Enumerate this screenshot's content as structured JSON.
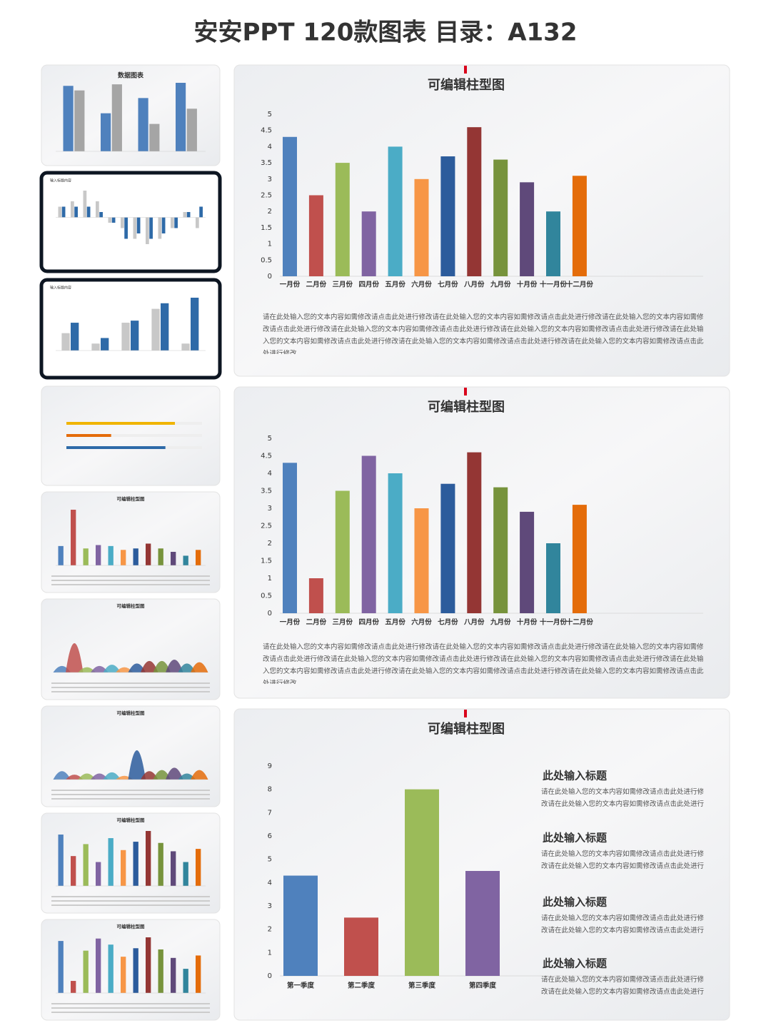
{
  "header": {
    "title": "安安PPT 120款图表 目录：A132"
  },
  "chart_data": [
    {
      "type": "bar",
      "title": "可编辑柱型图",
      "categories": [
        "一月份",
        "二月份",
        "三月份",
        "四月份",
        "五月份",
        "六月份",
        "七月份",
        "八月份",
        "九月份",
        "十月份",
        "十一月份",
        "十二月份"
      ],
      "values": [
        4.3,
        2.5,
        3.5,
        2.0,
        4.0,
        3.0,
        3.7,
        4.6,
        3.6,
        2.9,
        2.0,
        3.1
      ],
      "colors": [
        "#4f81bd",
        "#c0504d",
        "#9bbb59",
        "#8064a2",
        "#4bacc6",
        "#f79646",
        "#2c5c9c",
        "#943634",
        "#77933c",
        "#5f497a",
        "#31859c",
        "#e46c0a"
      ],
      "ylim": [
        0,
        5
      ],
      "yticks": [
        0,
        0.5,
        1,
        1.5,
        2,
        2.5,
        3,
        3.5,
        4,
        4.5,
        5
      ],
      "note": "请在此处输入您的文本内容如需修改请点击此处进行修改请在此处输入您的文本内容如需修改请点击此处进行修改请在此处输入您的文本内容如需修改请点击此处进行修改请在此处输入您的文本内容如需修改请点击此处进行修改请在此处输入您的文本内容如需修改请点击此处进行修改请在此处输入您的文本内容如需修改请点击此处进行修改请在此处输入您的文本内容如需修改请点击此处进行修改请在此处输入您的文本内容如需修改请点击此处进行修改"
    },
    {
      "type": "bar",
      "title": "可编辑柱型图",
      "categories": [
        "一月份",
        "二月份",
        "三月份",
        "四月份",
        "五月份",
        "六月份",
        "七月份",
        "八月份",
        "九月份",
        "十月份",
        "十一月份",
        "十二月份"
      ],
      "values": [
        4.3,
        1.0,
        3.5,
        4.5,
        4.0,
        3.0,
        3.7,
        4.6,
        3.6,
        2.9,
        2.0,
        3.1
      ],
      "colors": [
        "#4f81bd",
        "#c0504d",
        "#9bbb59",
        "#8064a2",
        "#4bacc6",
        "#f79646",
        "#2c5c9c",
        "#943634",
        "#77933c",
        "#5f497a",
        "#31859c",
        "#e46c0a"
      ],
      "ylim": [
        0,
        5
      ],
      "yticks": [
        0,
        0.5,
        1,
        1.5,
        2,
        2.5,
        3,
        3.5,
        4,
        4.5,
        5
      ],
      "note": "请在此处输入您的文本内容如需修改请点击此处进行修改请在此处输入您的文本内容如需修改请点击此处进行修改请在此处输入您的文本内容如需修改请点击此处进行修改请在此处输入您的文本内容如需修改请点击此处进行修改请在此处输入您的文本内容如需修改请点击此处进行修改请在此处输入您的文本内容如需修改请点击此处进行修改请在此处输入您的文本内容如需修改请点击此处进行修改请在此处输入您的文本内容如需修改请点击此处进行修改"
    },
    {
      "type": "bar",
      "title": "可编辑柱型图",
      "categories": [
        "第一季度",
        "第二季度",
        "第三季度",
        "第四季度"
      ],
      "values": [
        4.3,
        2.5,
        8,
        4.5
      ],
      "colors": [
        "#4f81bd",
        "#c0504d",
        "#9bbb59",
        "#8064a2"
      ],
      "ylim": [
        0,
        9
      ],
      "yticks": [
        0,
        1,
        2,
        3,
        4,
        5,
        6,
        7,
        8,
        9
      ],
      "side_notes": [
        {
          "heading": "此处输入标题",
          "color": "#4f81bd",
          "body": "请在此处输入您的文本内容如需修改请点击此处进行修改请在此处输入您的文本内容如需修改请点击此处进行"
        },
        {
          "heading": "此处输入标题",
          "color": "#c0504d",
          "body": "请在此处输入您的文本内容如需修改请点击此处进行修改请在此处输入您的文本内容如需修改请点击此处进行"
        },
        {
          "heading": "此处输入标题",
          "color": "#9bbb59",
          "body": "请在此处输入您的文本内容如需修改请点击此处进行修改请在此处输入您的文本内容如需修改请点击此处进行"
        },
        {
          "heading": "此处输入标题",
          "color": "#8064a2",
          "body": "请在此处输入您的文本内容如需修改请点击此处进行修改请在此处输入您的文本内容如需修改请点击此处进行"
        }
      ]
    }
  ],
  "thumbnails": [
    {
      "type": "combo",
      "title": "数据图表",
      "series": [
        {
          "color": "#4f81bd",
          "values": [
            4.3,
            2.5,
            3.5,
            4.5
          ]
        },
        {
          "color": "#a5a5a5",
          "values": [
            4,
            4.4,
            1.8,
            2.8
          ]
        }
      ]
    },
    {
      "type": "grouped",
      "title": "输入标题内容",
      "series": [
        {
          "color": "#c8c8c8",
          "values": [
            1,
            1.5,
            2.5,
            1.5,
            -0.5,
            -1,
            -2,
            -2.5,
            -2,
            -1,
            0.5,
            -1
          ]
        },
        {
          "color": "#2e6aa8",
          "values": [
            1,
            1,
            1,
            0.5,
            -0.5,
            -2,
            -1.5,
            -2,
            -1.5,
            -1,
            0.5,
            1
          ]
        }
      ]
    },
    {
      "type": "grouped",
      "title": "输入标题内容",
      "series": [
        {
          "color": "#c8c8c8",
          "values": [
            2.5,
            1,
            4,
            6,
            1
          ]
        },
        {
          "color": "#2e6aa8",
          "values": [
            4,
            1.8,
            4.3,
            6.8,
            7.6
          ]
        }
      ]
    },
    {
      "type": "progress",
      "values": [
        80,
        33,
        73
      ],
      "colors": [
        "#f0b400",
        "#e46c0a",
        "#2e6aa8"
      ]
    },
    {
      "type": "bar",
      "title": "可编辑柱型图",
      "values": [
        4,
        11.5,
        3.5,
        4.2,
        4,
        3.2,
        3.5,
        4.5,
        3.5,
        2.8,
        2.0,
        3.2
      ]
    },
    {
      "type": "mountain",
      "title": "可编辑柱型图",
      "values": [
        2,
        11,
        1.5,
        2,
        2.5,
        1.5,
        3,
        4,
        4,
        4.5,
        3,
        3.5
      ]
    },
    {
      "type": "mountain",
      "title": "可编辑柱型图",
      "values": [
        3,
        1.5,
        2,
        2,
        2.5,
        1,
        12,
        3,
        3.5,
        4.5,
        2,
        3.5
      ]
    },
    {
      "type": "mirror",
      "title": "可编辑柱型图"
    },
    {
      "type": "mirror",
      "title": "可编辑柱型图"
    }
  ]
}
